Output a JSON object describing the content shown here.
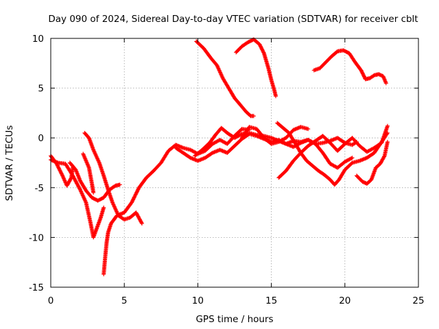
{
  "chart_data": {
    "type": "scatter",
    "title": "Day 090 of 2024, Sidereal Day-to-day VTEC variation (SDTVAR) for receiver cblt",
    "xlabel": "GPS time / hours",
    "ylabel": "SDTVAR / TECUs",
    "xlim": [
      0,
      25
    ],
    "ylim": [
      -15,
      10
    ],
    "xticks": [
      0,
      5,
      10,
      15,
      20,
      25
    ],
    "yticks": [
      -15,
      -10,
      -5,
      0,
      5,
      10
    ],
    "xtick_labels": [
      "0",
      "5",
      "10",
      "15",
      "20",
      "25"
    ],
    "ytick_labels": [
      "-15",
      "-10",
      "-5",
      "0",
      "5",
      "10"
    ],
    "grid": true,
    "marker": "plus",
    "color": "#ff0000",
    "series": [
      {
        "points": [
          [
            0.0,
            -1.8
          ],
          [
            0.4,
            -2.6
          ],
          [
            0.8,
            -3.8
          ],
          [
            1.1,
            -4.8
          ],
          [
            1.4,
            -4.0
          ],
          [
            1.5,
            -3.0
          ]
        ]
      },
      {
        "points": [
          [
            0.0,
            -2.2
          ],
          [
            0.5,
            -2.5
          ],
          [
            1.0,
            -2.6
          ],
          [
            1.5,
            -3.8
          ],
          [
            2.0,
            -5.2
          ],
          [
            2.4,
            -6.5
          ],
          [
            2.7,
            -8.5
          ],
          [
            2.9,
            -10.0
          ],
          [
            3.1,
            -9.2
          ],
          [
            3.4,
            -8.0
          ],
          [
            3.6,
            -7.0
          ]
        ]
      },
      {
        "points": [
          [
            1.3,
            -2.5
          ],
          [
            1.7,
            -3.2
          ],
          [
            2.0,
            -4.3
          ],
          [
            2.4,
            -5.3
          ],
          [
            2.8,
            -6.0
          ],
          [
            3.2,
            -6.3
          ],
          [
            3.6,
            -6.0
          ],
          [
            4.0,
            -5.2
          ],
          [
            4.4,
            -4.8
          ],
          [
            4.7,
            -4.7
          ]
        ]
      },
      {
        "points": [
          [
            2.3,
            0.5
          ],
          [
            2.6,
            0.0
          ],
          [
            2.9,
            -1.2
          ],
          [
            3.3,
            -2.5
          ],
          [
            3.6,
            -3.8
          ],
          [
            3.9,
            -5.2
          ],
          [
            4.2,
            -6.5
          ],
          [
            4.6,
            -7.8
          ],
          [
            5.0,
            -8.2
          ],
          [
            5.4,
            -8.0
          ],
          [
            5.8,
            -7.5
          ],
          [
            6.2,
            -8.6
          ]
        ]
      },
      {
        "points": [
          [
            3.6,
            -13.7
          ],
          [
            3.7,
            -12.0
          ],
          [
            3.8,
            -10.5
          ],
          [
            3.9,
            -9.5
          ],
          [
            4.1,
            -8.6
          ],
          [
            4.5,
            -7.8
          ],
          [
            5.0,
            -7.5
          ],
          [
            5.5,
            -6.5
          ],
          [
            6.0,
            -5.0
          ],
          [
            6.5,
            -4.0
          ],
          [
            7.0,
            -3.3
          ],
          [
            7.5,
            -2.5
          ],
          [
            8.0,
            -1.3
          ],
          [
            8.5,
            -0.7
          ],
          [
            9.0,
            -1.0
          ],
          [
            9.5,
            -1.2
          ],
          [
            10.0,
            -1.6
          ],
          [
            10.5,
            -1.3
          ],
          [
            11.0,
            -0.6
          ],
          [
            11.5,
            -0.2
          ],
          [
            12.0,
            -0.6
          ],
          [
            12.5,
            0.2
          ],
          [
            13.0,
            0.9
          ],
          [
            13.5,
            0.8
          ]
        ]
      },
      {
        "points": [
          [
            2.2,
            -1.6
          ],
          [
            2.6,
            -3.0
          ],
          [
            2.8,
            -4.6
          ],
          [
            2.9,
            -5.5
          ]
        ]
      },
      {
        "points": [
          [
            8.5,
            -1.0
          ],
          [
            9.0,
            -1.5
          ],
          [
            9.5,
            -2.0
          ],
          [
            10.0,
            -2.3
          ],
          [
            10.5,
            -2.0
          ],
          [
            11.0,
            -1.5
          ],
          [
            11.5,
            -1.2
          ],
          [
            12.0,
            -1.5
          ],
          [
            12.5,
            -0.8
          ],
          [
            13.0,
            -0.1
          ],
          [
            13.5,
            0.4
          ],
          [
            14.0,
            0.2
          ],
          [
            14.5,
            -0.1
          ],
          [
            15.0,
            -0.4
          ],
          [
            15.5,
            -0.2
          ],
          [
            16.0,
            -0.6
          ],
          [
            16.5,
            -0.9
          ],
          [
            17.0,
            -0.5
          ],
          [
            17.5,
            -0.2
          ],
          [
            18.0,
            -0.6
          ],
          [
            18.5,
            -0.5
          ],
          [
            19.0,
            -0.3
          ],
          [
            19.5,
            0.0
          ],
          [
            20.0,
            -0.5
          ],
          [
            20.5,
            -0.7
          ],
          [
            20.8,
            -0.4
          ]
        ]
      },
      {
        "points": [
          [
            9.8,
            -1.8
          ],
          [
            10.3,
            -1.2
          ],
          [
            10.8,
            -0.5
          ],
          [
            11.2,
            0.3
          ],
          [
            11.6,
            1.0
          ],
          [
            12.0,
            0.5
          ],
          [
            12.5,
            0.0
          ],
          [
            13.0,
            0.4
          ],
          [
            13.5,
            0.5
          ],
          [
            14.0,
            0.3
          ],
          [
            14.5,
            0.2
          ],
          [
            15.0,
            0.0
          ],
          [
            15.5,
            -0.3
          ],
          [
            16.0,
            -0.6
          ],
          [
            16.5,
            -0.3
          ],
          [
            17.0,
            -0.4
          ],
          [
            17.5,
            -0.2
          ],
          [
            18.0,
            -0.6
          ],
          [
            18.5,
            -1.5
          ],
          [
            19.0,
            -2.6
          ],
          [
            19.5,
            -3.0
          ],
          [
            20.0,
            -2.4
          ],
          [
            20.5,
            -2.0
          ]
        ]
      },
      {
        "points": [
          [
            13.0,
            0.0
          ],
          [
            13.5,
            1.1
          ],
          [
            14.0,
            0.9
          ],
          [
            14.5,
            0.0
          ],
          [
            15.0,
            -0.6
          ],
          [
            15.5,
            -0.4
          ],
          [
            16.0,
            0.0
          ],
          [
            16.5,
            0.8
          ],
          [
            17.0,
            1.1
          ],
          [
            17.5,
            0.9
          ]
        ]
      },
      {
        "points": [
          [
            15.4,
            1.5
          ],
          [
            15.8,
            1.0
          ],
          [
            16.2,
            0.5
          ],
          [
            16.6,
            -0.5
          ],
          [
            17.0,
            -1.5
          ],
          [
            17.4,
            -2.3
          ],
          [
            17.8,
            -2.8
          ],
          [
            18.2,
            -3.3
          ],
          [
            18.6,
            -3.7
          ],
          [
            19.0,
            -4.2
          ],
          [
            19.3,
            -4.7
          ],
          [
            19.6,
            -4.2
          ],
          [
            20.0,
            -3.2
          ],
          [
            20.5,
            -2.5
          ],
          [
            21.0,
            -2.3
          ],
          [
            21.5,
            -2.0
          ],
          [
            22.0,
            -1.5
          ],
          [
            22.5,
            -0.4
          ],
          [
            22.9,
            0.5
          ]
        ]
      },
      {
        "points": [
          [
            15.5,
            -4.0
          ],
          [
            16.0,
            -3.3
          ],
          [
            16.5,
            -2.3
          ],
          [
            17.0,
            -1.5
          ],
          [
            17.5,
            -0.8
          ],
          [
            18.0,
            -0.3
          ],
          [
            18.5,
            0.2
          ],
          [
            19.0,
            -0.5
          ],
          [
            19.5,
            -1.3
          ],
          [
            20.0,
            -0.6
          ],
          [
            20.5,
            0.0
          ],
          [
            21.0,
            -0.8
          ],
          [
            21.5,
            -1.4
          ],
          [
            22.0,
            -1.0
          ],
          [
            22.5,
            -0.5
          ],
          [
            22.9,
            1.2
          ]
        ]
      },
      {
        "points": [
          [
            20.8,
            -3.8
          ],
          [
            21.2,
            -4.4
          ],
          [
            21.5,
            -4.6
          ],
          [
            21.8,
            -4.2
          ],
          [
            22.1,
            -3.0
          ],
          [
            22.4,
            -2.6
          ],
          [
            22.7,
            -1.8
          ],
          [
            22.9,
            -0.4
          ]
        ]
      },
      {
        "points": [
          [
            9.9,
            9.7
          ],
          [
            10.4,
            9.0
          ],
          [
            10.9,
            8.0
          ],
          [
            11.3,
            7.3
          ],
          [
            11.7,
            6.0
          ],
          [
            12.1,
            5.0
          ],
          [
            12.5,
            4.0
          ],
          [
            12.9,
            3.3
          ],
          [
            13.3,
            2.6
          ],
          [
            13.6,
            2.2
          ],
          [
            13.8,
            2.2
          ]
        ]
      },
      {
        "points": [
          [
            12.6,
            8.6
          ],
          [
            13.0,
            9.2
          ],
          [
            13.4,
            9.6
          ],
          [
            13.8,
            9.9
          ],
          [
            14.2,
            9.4
          ],
          [
            14.5,
            8.5
          ],
          [
            14.8,
            7.0
          ],
          [
            15.0,
            5.8
          ],
          [
            15.2,
            4.8
          ],
          [
            15.3,
            4.2
          ]
        ]
      },
      {
        "points": [
          [
            17.9,
            6.8
          ],
          [
            18.3,
            7.0
          ],
          [
            18.7,
            7.6
          ],
          [
            19.1,
            8.2
          ],
          [
            19.5,
            8.7
          ],
          [
            19.9,
            8.8
          ],
          [
            20.3,
            8.5
          ],
          [
            20.7,
            7.6
          ],
          [
            21.1,
            6.8
          ],
          [
            21.4,
            5.9
          ],
          [
            21.7,
            6.0
          ],
          [
            22.0,
            6.3
          ],
          [
            22.3,
            6.4
          ],
          [
            22.6,
            6.2
          ],
          [
            22.8,
            5.5
          ]
        ]
      }
    ]
  }
}
